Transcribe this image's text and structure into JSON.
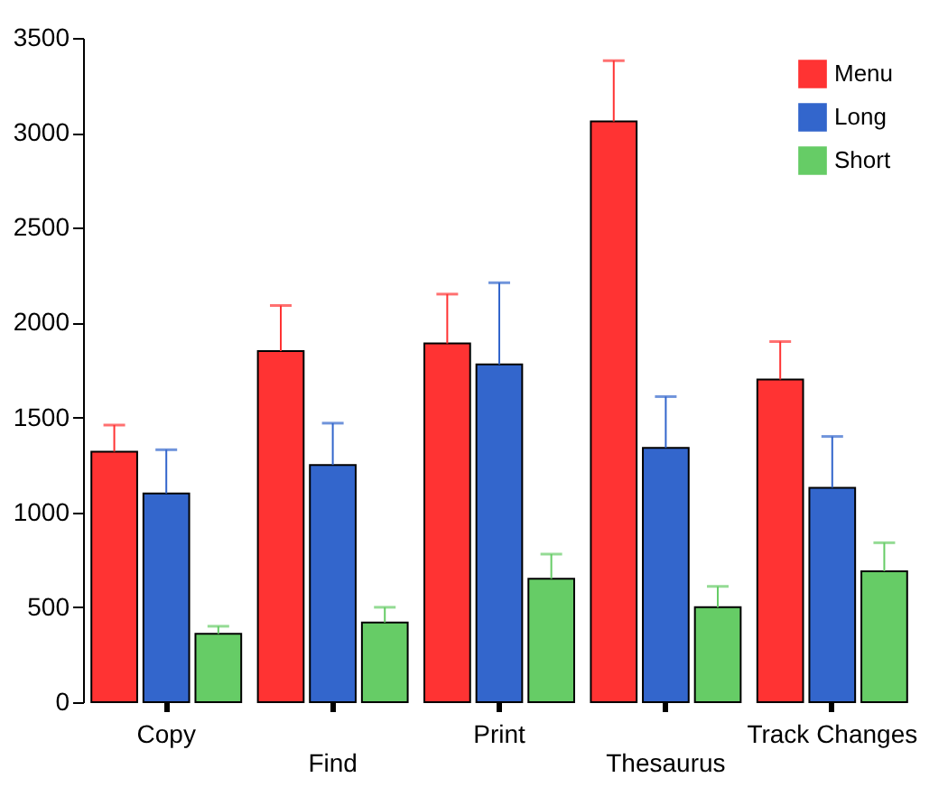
{
  "chart_data": {
    "type": "bar",
    "categories": [
      "Copy",
      "Find",
      "Print",
      "Thesaurus",
      "Track Changes"
    ],
    "series": [
      {
        "name": "Menu",
        "color": "#ff3333",
        "values": [
          1320,
          1850,
          1890,
          3060,
          1700
        ],
        "errors": [
          [
            1320,
            1460
          ],
          [
            1850,
            2090
          ],
          [
            1890,
            2150
          ],
          [
            3060,
            3380
          ],
          [
            1700,
            1900
          ]
        ]
      },
      {
        "name": "Long",
        "color": "#3366cc",
        "values": [
          1100,
          1250,
          1780,
          1340,
          1130
        ],
        "errors": [
          [
            1100,
            1330
          ],
          [
            1250,
            1470
          ],
          [
            1780,
            2210
          ],
          [
            1340,
            1610
          ],
          [
            1130,
            1400
          ]
        ]
      },
      {
        "name": "Short",
        "color": "#66cc66",
        "values": [
          360,
          420,
          650,
          500,
          690
        ],
        "errors": [
          [
            360,
            400
          ],
          [
            420,
            500
          ],
          [
            650,
            780
          ],
          [
            500,
            610
          ],
          [
            690,
            840
          ]
        ]
      }
    ],
    "ylim": [
      0,
      3500
    ],
    "yticks": [
      0,
      500,
      1000,
      1500,
      2000,
      2500,
      3000,
      3500
    ],
    "grid": false,
    "legend": "top right"
  }
}
